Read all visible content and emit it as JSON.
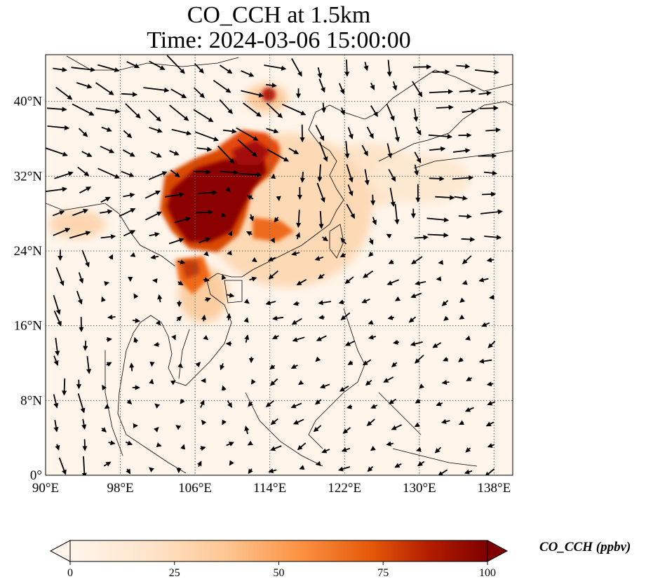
{
  "title_line1": "CO_CCH at 1.5km",
  "title_line2": "Time: 2024-03-06 15:00:00",
  "map": {
    "lon_range": [
      90,
      140
    ],
    "lat_range": [
      0,
      45
    ],
    "lon_ticks": [
      {
        "value": 90,
        "label": "90°E"
      },
      {
        "value": 98,
        "label": "98°E"
      },
      {
        "value": 106,
        "label": "106°E"
      },
      {
        "value": 114,
        "label": "114°E"
      },
      {
        "value": 122,
        "label": "122°E"
      },
      {
        "value": 130,
        "label": "130°E"
      },
      {
        "value": 138,
        "label": "138°E"
      }
    ],
    "lat_ticks": [
      {
        "value": 0,
        "label": "0°"
      },
      {
        "value": 8,
        "label": "8°N"
      },
      {
        "value": 16,
        "label": "16°N"
      },
      {
        "value": 24,
        "label": "24°N"
      },
      {
        "value": 32,
        "label": "32°N"
      },
      {
        "value": 40,
        "label": "40°N"
      }
    ],
    "gridlines": "dotted",
    "field_colors": [
      "#fff5eb",
      "#fdd0a2",
      "#fd8d3c",
      "#d94801",
      "#7f0000"
    ]
  },
  "colorbar": {
    "label": "CO_CCH (ppbv)",
    "min": 0,
    "max": 100,
    "extend": "both",
    "ticks": [
      {
        "value": 0,
        "label": "0"
      },
      {
        "value": 25,
        "label": "25"
      },
      {
        "value": 50,
        "label": "50"
      },
      {
        "value": 75,
        "label": "75"
      },
      {
        "value": 100,
        "label": "100"
      }
    ]
  }
}
